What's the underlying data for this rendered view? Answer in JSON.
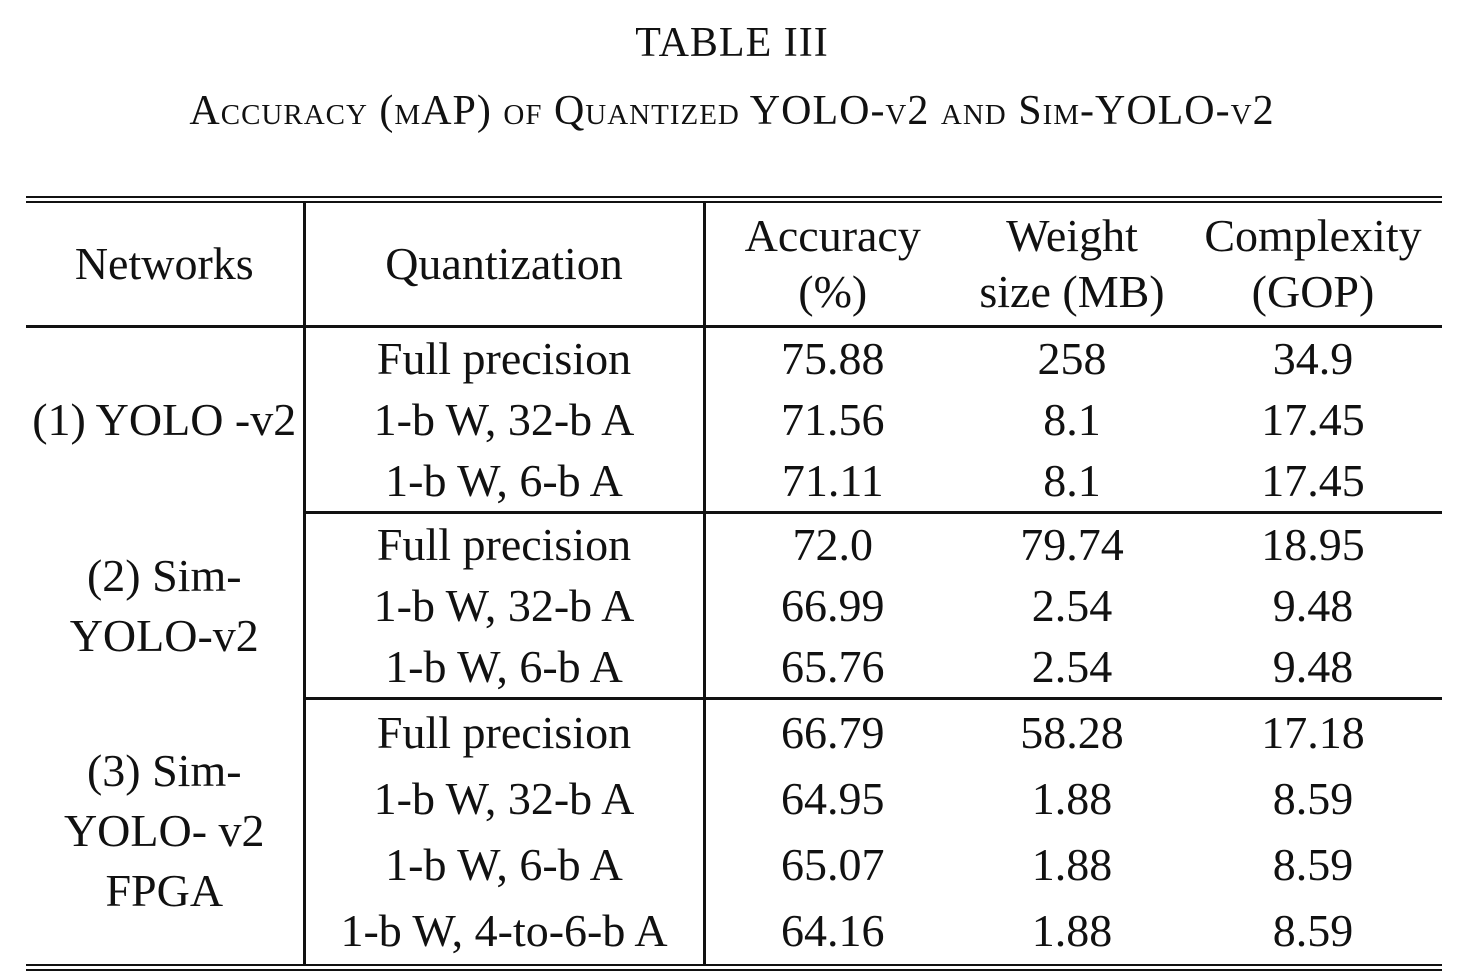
{
  "caption": {
    "number": "TABLE III",
    "title": "Accuracy (mAP) of Quantized YOLO-v2 and Sim-YOLO-v2"
  },
  "table": {
    "headers": {
      "networks": "Networks",
      "quantization": "Quantization",
      "accuracy_line1": "Accuracy",
      "accuracy_line2": "(%)",
      "weight_line1": "Weight",
      "weight_line2": "size (MB)",
      "complexity_line1": "Complexity",
      "complexity_line2": "(GOP)"
    },
    "groups": [
      {
        "network": "(1) YOLO -v2",
        "rows": [
          {
            "quantization": "Full precision",
            "accuracy": "75.88",
            "weight_size": "258",
            "complexity": "34.9"
          },
          {
            "quantization": "1-b W, 32-b A",
            "accuracy": "71.56",
            "weight_size": "8.1",
            "complexity": "17.45"
          },
          {
            "quantization": "1-b W, 6-b A",
            "accuracy": "71.11",
            "weight_size": "8.1",
            "complexity": "17.45"
          }
        ]
      },
      {
        "network": "(2) Sim- YOLO-v2",
        "rows": [
          {
            "quantization": "Full precision",
            "accuracy": "72.0",
            "weight_size": "79.74",
            "complexity": "18.95"
          },
          {
            "quantization": "1-b W, 32-b A",
            "accuracy": "66.99",
            "weight_size": "2.54",
            "complexity": "9.48"
          },
          {
            "quantization": "1-b W, 6-b A",
            "accuracy": "65.76",
            "weight_size": "2.54",
            "complexity": "9.48"
          }
        ]
      },
      {
        "network": "(3) Sim- YOLO- v2 FPGA",
        "rows": [
          {
            "quantization": "Full precision",
            "accuracy": "66.79",
            "weight_size": "58.28",
            "complexity": "17.18"
          },
          {
            "quantization": "1-b W, 32-b A",
            "accuracy": "64.95",
            "weight_size": "1.88",
            "complexity": "8.59"
          },
          {
            "quantization": "1-b W, 6-b A",
            "accuracy": "65.07",
            "weight_size": "1.88",
            "complexity": "8.59"
          },
          {
            "quantization": "1-b W, 4-to-6-b A",
            "accuracy": "64.16",
            "weight_size": "1.88",
            "complexity": "8.59"
          }
        ]
      }
    ]
  }
}
